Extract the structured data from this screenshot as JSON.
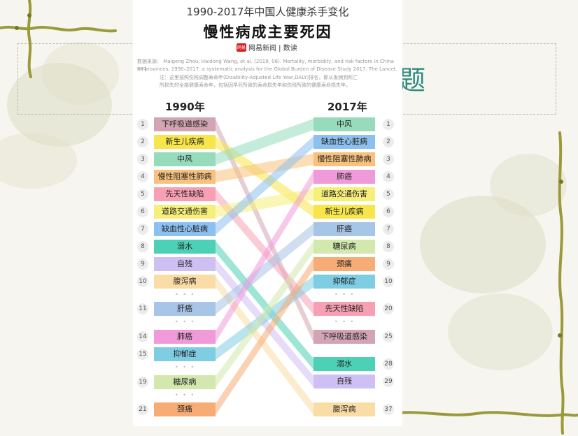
{
  "slide": {
    "background_title_fragment": "题"
  },
  "infographic": {
    "title_line1": "1990-2017年中国人健康杀手变化",
    "title_line2": "慢性病成主要死因",
    "brand_logo": "网易",
    "brand": "网易新闻 | 数读",
    "source_lines": [
      "数据来源：   Maigeng Zhou, Haidong Wang, et al. (2019, 06). Mortality, morbidity, and risk factors in China and",
      "its provinces, 1990–2017: a systematic analysis for the Global Burden of Disease Study 2017. The Lancet.",
      "注：这里按照伤残调整寿命年(Disability-Adjusted Life Year,DALY)排名，即从发病到死亡",
      "所损失的全部健康寿命年，包括因早死所致的寿命损失年和伤残所致的健康寿命损失年。"
    ],
    "year_left": "1990年",
    "year_right": "2017年",
    "ellipsis": "• • •",
    "left": [
      {
        "rank": "1",
        "name": "下呼吸道感染",
        "color": "#d3a5b3"
      },
      {
        "rank": "2",
        "name": "新生儿疾病",
        "color": "#f7e54c"
      },
      {
        "rank": "3",
        "name": "中风",
        "color": "#96dcbc"
      },
      {
        "rank": "4",
        "name": "慢性阻塞性肺病",
        "color": "#f8c27e"
      },
      {
        "rank": "5",
        "name": "先天性缺陷",
        "color": "#f7a0b4"
      },
      {
        "rank": "6",
        "name": "道路交通伤害",
        "color": "#f6f07a"
      },
      {
        "rank": "7",
        "name": "缺血性心脏病",
        "color": "#8cc0ee"
      },
      {
        "rank": "8",
        "name": "溺水",
        "color": "#4dd1b6"
      },
      {
        "rank": "9",
        "name": "自残",
        "color": "#cfc0f4"
      },
      {
        "rank": "10",
        "name": "腹泻病",
        "color": "#f9dca6"
      },
      {
        "rank": "11",
        "name": "肝癌",
        "color": "#a7c5e6"
      },
      {
        "rank": "14",
        "name": "肺癌",
        "color": "#f19ad9"
      },
      {
        "rank": "15",
        "name": "抑郁症",
        "color": "#7fcde3"
      },
      {
        "rank": "19",
        "name": "糖尿病",
        "color": "#d3e8ad"
      },
      {
        "rank": "21",
        "name": "颈痛",
        "color": "#f6ac74"
      }
    ],
    "right": [
      {
        "rank": "1",
        "name": "中风",
        "color": "#96dcbc"
      },
      {
        "rank": "2",
        "name": "缺血性心脏病",
        "color": "#8cc0ee"
      },
      {
        "rank": "3",
        "name": "慢性阻塞性肺病",
        "color": "#f8c27e"
      },
      {
        "rank": "4",
        "name": "肺癌",
        "color": "#f19ad9"
      },
      {
        "rank": "5",
        "name": "道路交通伤害",
        "color": "#f6f07a"
      },
      {
        "rank": "6",
        "name": "新生儿疾病",
        "color": "#f7e54c"
      },
      {
        "rank": "7",
        "name": "肝癌",
        "color": "#a7c5e6"
      },
      {
        "rank": "8",
        "name": "糖尿病",
        "color": "#d3e8ad"
      },
      {
        "rank": "9",
        "name": "颈痛",
        "color": "#f6ac74"
      },
      {
        "rank": "10",
        "name": "抑郁症",
        "color": "#7fcde3"
      },
      {
        "rank": "20",
        "name": "先天性缺陷",
        "color": "#f7a0b4"
      },
      {
        "rank": "25",
        "name": "下呼吸道感染",
        "color": "#d3a5b3"
      },
      {
        "rank": "28",
        "name": "溺水",
        "color": "#4dd1b6"
      },
      {
        "rank": "29",
        "name": "自残",
        "color": "#cfc0f4"
      },
      {
        "rank": "37",
        "name": "腹泻病",
        "color": "#f9dca6"
      }
    ]
  }
}
